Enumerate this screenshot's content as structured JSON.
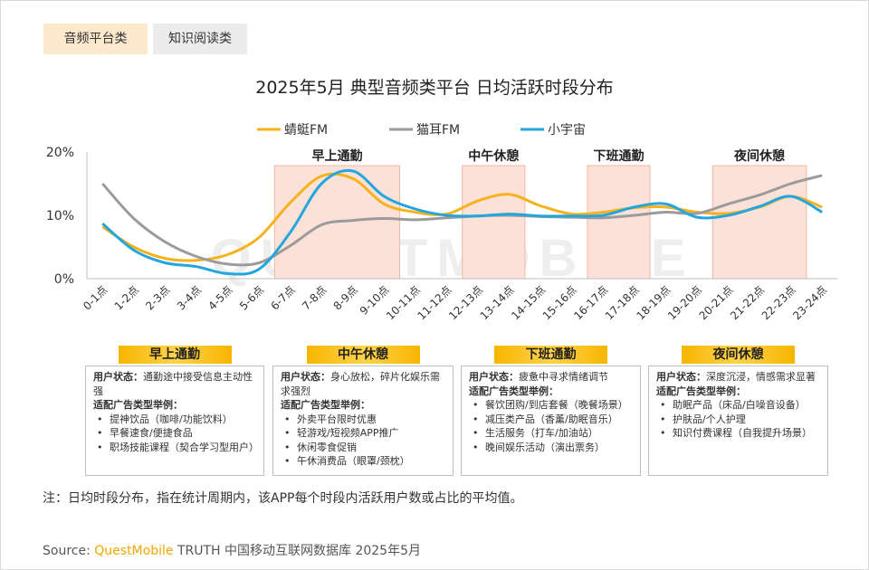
{
  "tabs": [
    {
      "label": "音频平台类",
      "active": true
    },
    {
      "label": "知识阅读类",
      "active": false
    }
  ],
  "title": "2025年5月 典型音频类平台 日均活跃时段分布",
  "watermark": "QUESTMOBILE",
  "chart_data": {
    "type": "line",
    "categories": [
      "0-1点",
      "1-2点",
      "2-3点",
      "3-4点",
      "4-5点",
      "5-6点",
      "6-7点",
      "7-8点",
      "8-9点",
      "9-10点",
      "10-11点",
      "11-12点",
      "12-13点",
      "13-14点",
      "14-15点",
      "15-16点",
      "16-17点",
      "17-18点",
      "18-19点",
      "19-20点",
      "20-21点",
      "21-22点",
      "22-23点",
      "23-24点"
    ],
    "yticks": [
      "0%",
      "10%",
      "20%"
    ],
    "ylim": [
      0,
      20
    ],
    "series": [
      {
        "name": "蜻蜓FM",
        "color": "#f6b21c",
        "values": [
          8.2,
          5.0,
          3.2,
          2.9,
          3.8,
          6.5,
          12.0,
          16.2,
          15.8,
          11.8,
          10.5,
          10.2,
          12.3,
          13.3,
          11.5,
          10.2,
          10.5,
          11.2,
          11.3,
          10.5,
          10.3,
          11.3,
          13.0,
          11.3
        ]
      },
      {
        "name": "猫耳FM",
        "color": "#9b9b9b",
        "values": [
          15.0,
          9.5,
          5.8,
          3.5,
          2.3,
          2.5,
          5.2,
          8.5,
          9.2,
          9.5,
          9.3,
          9.6,
          9.9,
          10.0,
          9.8,
          9.7,
          9.6,
          10.0,
          10.5,
          10.3,
          11.8,
          13.2,
          15.0,
          16.3
        ]
      },
      {
        "name": "小宇宙",
        "color": "#22a6dd",
        "values": [
          8.7,
          4.5,
          2.5,
          1.9,
          0.8,
          1.5,
          7.3,
          15.0,
          17.0,
          13.0,
          11.0,
          10.0,
          9.9,
          10.2,
          9.9,
          9.9,
          10.0,
          11.3,
          11.8,
          9.7,
          10.0,
          11.4,
          13.0,
          10.5
        ]
      }
    ],
    "highlights": [
      {
        "label": "早上通勤",
        "from": 6,
        "to": 9
      },
      {
        "label": "中午休憩",
        "from": 12,
        "to": 13
      },
      {
        "label": "下班通勤",
        "from": 16,
        "to": 17
      },
      {
        "label": "夜间休憩",
        "from": 20,
        "to": 22
      }
    ],
    "highlight_color": "#fbe1d8",
    "legend_position": "top"
  },
  "panels": [
    {
      "title": "早上通勤",
      "state_label": "用户状态：",
      "state": "通勤途中接受信息主动性强",
      "ads_label": "适配广告类型举例：",
      "items": [
        "提神饮品（咖啡/功能饮料）",
        "早餐速食/便捷食品",
        "职场技能课程（契合学习型用户）"
      ]
    },
    {
      "title": "中午休憩",
      "state_label": "用户状态：",
      "state": "身心放松，碎片化娱乐需求强烈",
      "ads_label": "适配广告类型举例：",
      "items": [
        "外卖平台限时优惠",
        "轻游戏/短视频APP推广",
        "休闲零食促销",
        "午休消费品（眼罩/颈枕）"
      ]
    },
    {
      "title": "下班通勤",
      "state_label": "用户状态：",
      "state": "疲惫中寻求情绪调节",
      "ads_label": "适配广告类型举例：",
      "items": [
        "餐饮团购/到店套餐（晚餐场景）",
        "减压类产品（香薰/助眠音乐）",
        "生活服务（打车/加油站）",
        "晚间娱乐活动（演出票务）"
      ]
    },
    {
      "title": "夜间休憩",
      "state_label": "用户状态：",
      "state": "深度沉浸，情感需求显著",
      "ads_label": "适配广告类型举例：",
      "items": [
        "助眠产品（床品/白噪音设备）",
        "护肤品/个人护理",
        "知识付费课程（自我提升场景）"
      ]
    }
  ],
  "note": "注：日均时段分布，指在统计周期内，该APP每个时段内活跃用户数或占比的平均值。",
  "source": {
    "label": "Source:",
    "brand": "QuestMobile",
    "text": "TRUTH 中国移动互联网数据库 2025年5月"
  }
}
